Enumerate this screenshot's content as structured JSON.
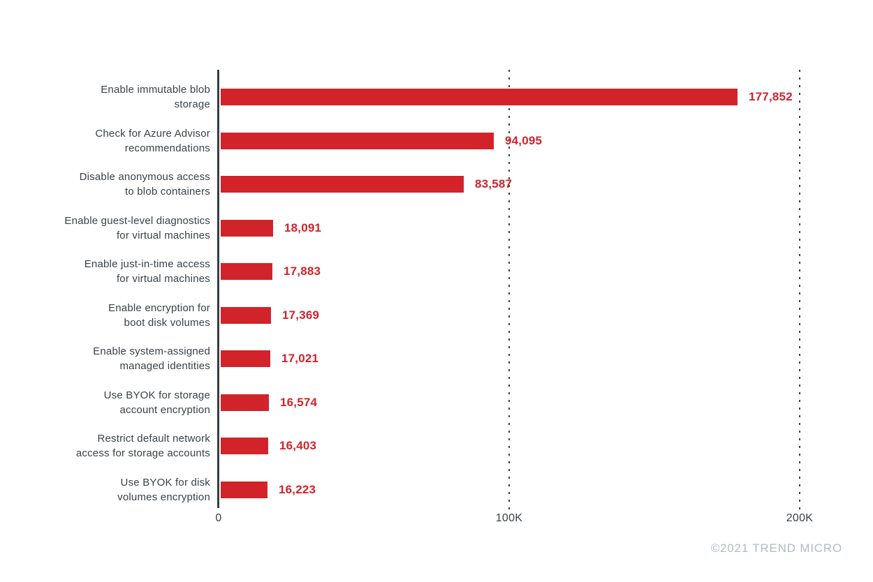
{
  "chart_data": {
    "type": "bar",
    "orientation": "horizontal",
    "title": "",
    "xlabel": "",
    "ylabel": "",
    "categories": [
      "Enable immutable blob\nstorage",
      "Check for Azure Advisor\nrecommendations",
      "Disable anonymous access\nto blob containers",
      "Enable guest-level diagnostics\nfor virtual machines",
      "Enable just-in-time access\nfor virtual machines",
      "Enable encryption for\nboot disk volumes",
      "Enable system-assigned\nmanaged identities",
      "Use BYOK for storage\naccount encryption",
      "Restrict default network\naccess for storage accounts",
      "Use BYOK for disk\nvolumes encryption"
    ],
    "values": [
      177852,
      94095,
      83587,
      18091,
      17883,
      17369,
      17021,
      16574,
      16403,
      16223
    ],
    "display_values": [
      "177,852",
      "94,095",
      "83,587",
      "18,091",
      "17,883",
      "17,369",
      "17,021",
      "16,574",
      "16,403",
      "16,223"
    ],
    "xlim": [
      0,
      225000
    ],
    "x_ticks": [
      {
        "value": 0,
        "label": "0"
      },
      {
        "value": 100000,
        "label": "100K"
      },
      {
        "value": 200000,
        "label": "200K"
      }
    ],
    "grid": "dotted vertical gridlines at 100K and 200K",
    "legend": null,
    "bar_color": "#d2232a",
    "value_label_color": "#d2232a",
    "axis_color": "#363e44",
    "text_color": "#3a4147",
    "footer": "©2021 TREND MICRO",
    "footer_color": "#afbcc3"
  }
}
